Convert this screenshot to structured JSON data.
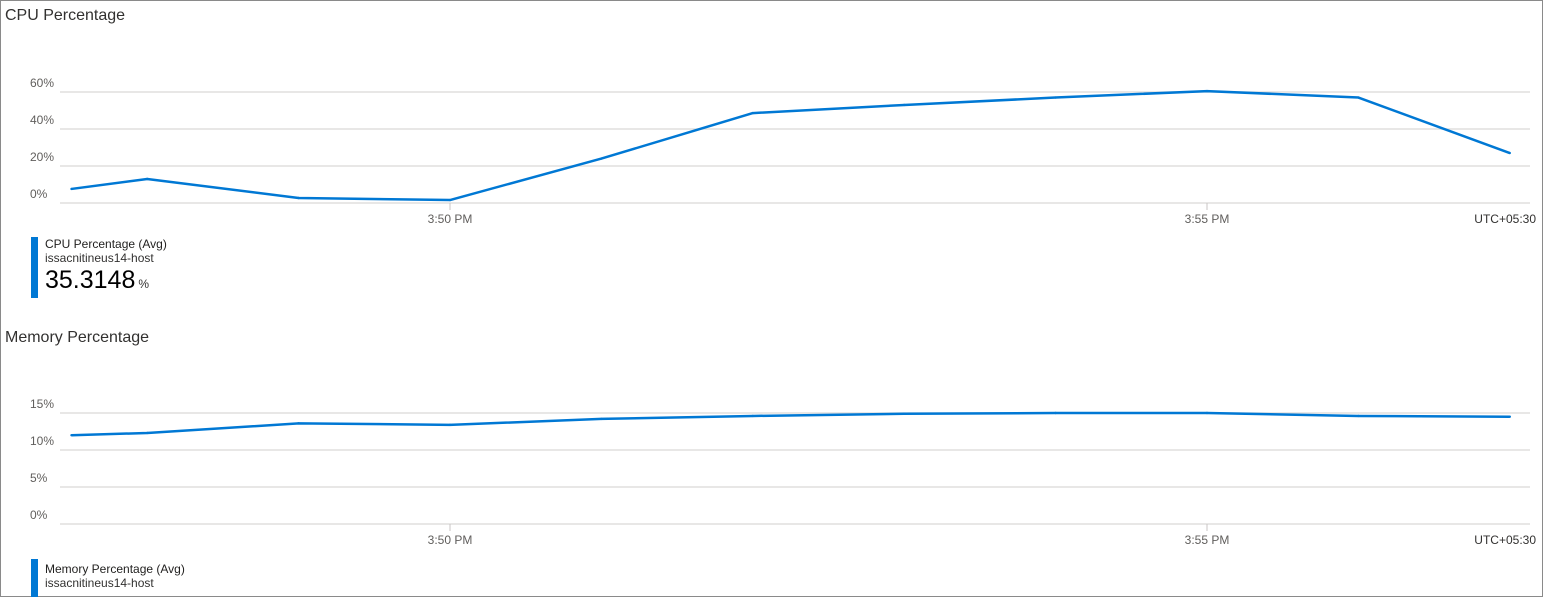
{
  "colors": {
    "series": "#0078d4",
    "grid": "#e1dfdd",
    "axis_text": "#605e5c"
  },
  "chart_data": [
    {
      "type": "line",
      "title": "CPU Percentage",
      "x": [
        "15:47:30",
        "15:48",
        "15:49",
        "15:50",
        "15:51",
        "15:52",
        "15:53",
        "15:54",
        "15:55",
        "15:56",
        "15:57"
      ],
      "series": [
        {
          "name": "CPU Percentage (Avg)",
          "values": [
            7.6,
            13,
            2.7,
            1.6,
            24,
            48.6,
            53,
            57,
            60.5,
            57,
            27
          ]
        }
      ],
      "ylim": [
        0,
        60
      ],
      "yticks": [
        "0%",
        "20%",
        "40%",
        "60%"
      ],
      "ytick_values": [
        0,
        20,
        40,
        60
      ],
      "xticks": [
        "3:50 PM",
        "3:55 PM"
      ],
      "xtick_values": [
        "15:50",
        "15:55"
      ],
      "timezone": "UTC+05:30",
      "grid": true,
      "legend": {
        "placement": "bottom-left",
        "metric": "CPU Percentage (Avg)",
        "resource": "issacnitineus14-host",
        "value": "35.3148",
        "unit": "%"
      }
    },
    {
      "type": "line",
      "title": "Memory Percentage",
      "x": [
        "15:47:30",
        "15:48",
        "15:49",
        "15:50",
        "15:51",
        "15:52",
        "15:53",
        "15:54",
        "15:55",
        "15:56",
        "15:57"
      ],
      "series": [
        {
          "name": "Memory Percentage (Avg)",
          "values": [
            12.0,
            12.3,
            13.6,
            13.4,
            14.2,
            14.6,
            14.9,
            15.0,
            15.0,
            14.6,
            14.5
          ]
        }
      ],
      "ylim": [
        0,
        15
      ],
      "yticks": [
        "0%",
        "5%",
        "10%",
        "15%"
      ],
      "ytick_values": [
        0,
        5,
        10,
        15
      ],
      "xticks": [
        "3:50 PM",
        "3:55 PM"
      ],
      "xtick_values": [
        "15:50",
        "15:55"
      ],
      "timezone": "UTC+05:30",
      "grid": true,
      "legend": {
        "placement": "bottom-left",
        "metric": "Memory Percentage (Avg)",
        "resource": "issacnitineus14-host"
      }
    }
  ]
}
